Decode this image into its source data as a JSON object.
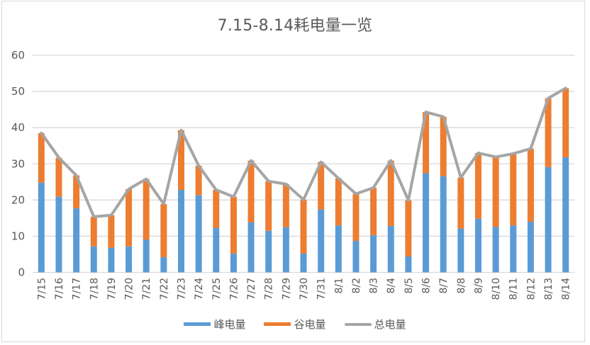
{
  "chart_data": {
    "type": "bar",
    "subtype": "stacked-bar-with-line",
    "title": "7.15-8.14耗电量一览",
    "xlabel": "",
    "ylabel": "",
    "ylim": [
      0,
      60
    ],
    "yticks": [
      0,
      10,
      20,
      30,
      40,
      50,
      60
    ],
    "grid": true,
    "legend_position": "bottom",
    "categories": [
      "7/15",
      "7/16",
      "7/17",
      "7/18",
      "7/19",
      "7/20",
      "7/21",
      "7/22",
      "7/23",
      "7/24",
      "7/25",
      "7/26",
      "7/27",
      "7/28",
      "7/29",
      "7/30",
      "7/31",
      "8/1",
      "8/2",
      "8/3",
      "8/4",
      "8/5",
      "8/6",
      "8/7",
      "8/8",
      "8/9",
      "8/10",
      "8/11",
      "8/12",
      "8/13",
      "8/14"
    ],
    "series": [
      {
        "name": "峰电量",
        "type": "bar",
        "stack": "total",
        "color": "#5b9bd5",
        "values": [
          24.8,
          20.9,
          17.7,
          7.2,
          6.8,
          7.2,
          9.0,
          4.2,
          22.8,
          21.3,
          12.3,
          5.2,
          13.8,
          11.5,
          12.5,
          5.2,
          17.4,
          13.0,
          8.7,
          10.3,
          12.8,
          4.4,
          27.4,
          26.6,
          12.1,
          14.8,
          12.6,
          13.0,
          14.0,
          29.1,
          31.8
        ]
      },
      {
        "name": "谷电量",
        "type": "bar",
        "stack": "total",
        "color": "#ed7d31",
        "values": [
          13.7,
          10.8,
          9.1,
          8.2,
          9.0,
          15.8,
          16.8,
          14.7,
          16.5,
          8.2,
          10.5,
          15.7,
          17.1,
          13.7,
          11.9,
          14.9,
          13.1,
          13.0,
          13.0,
          13.1,
          18.1,
          15.5,
          16.9,
          16.4,
          14.1,
          18.2,
          19.3,
          19.8,
          20.2,
          19.0,
          19.1
        ]
      },
      {
        "name": "总电量",
        "type": "line",
        "color": "#a5a5a5",
        "values": [
          38.5,
          31.7,
          26.8,
          15.4,
          15.8,
          23.0,
          25.8,
          18.9,
          39.3,
          29.5,
          22.8,
          20.9,
          30.9,
          25.2,
          24.4,
          20.1,
          30.5,
          26.0,
          21.7,
          23.4,
          30.9,
          19.9,
          44.3,
          43.0,
          26.2,
          33.0,
          31.9,
          32.8,
          34.2,
          48.1,
          50.9
        ]
      }
    ]
  },
  "legend": {
    "items": [
      {
        "label": "峰电量",
        "color": "#5b9bd5",
        "kind": "bar"
      },
      {
        "label": "谷电量",
        "color": "#ed7d31",
        "kind": "bar"
      },
      {
        "label": "总电量",
        "color": "#a5a5a5",
        "kind": "line"
      }
    ]
  }
}
